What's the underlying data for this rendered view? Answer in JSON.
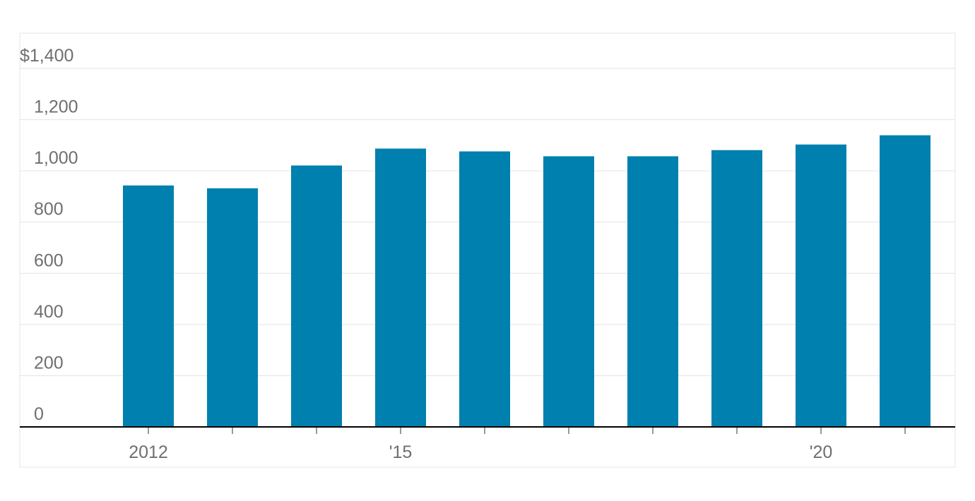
{
  "chart_data": {
    "type": "bar",
    "categories": [
      "2012",
      null,
      null,
      "'15",
      null,
      null,
      null,
      null,
      "'20",
      null
    ],
    "values": [
      943,
      932,
      1021,
      1087,
      1076,
      1057,
      1057,
      1081,
      1103,
      1139
    ],
    "color": "#0080ae",
    "ylim": [
      0,
      1400
    ],
    "yticks": [
      0,
      200,
      400,
      600,
      800,
      {
        "value": 1000,
        "label": "1,000"
      },
      {
        "value": 1200,
        "label": "1,200"
      },
      {
        "value": 1400,
        "label": "$1,400"
      }
    ],
    "grid": true
  }
}
